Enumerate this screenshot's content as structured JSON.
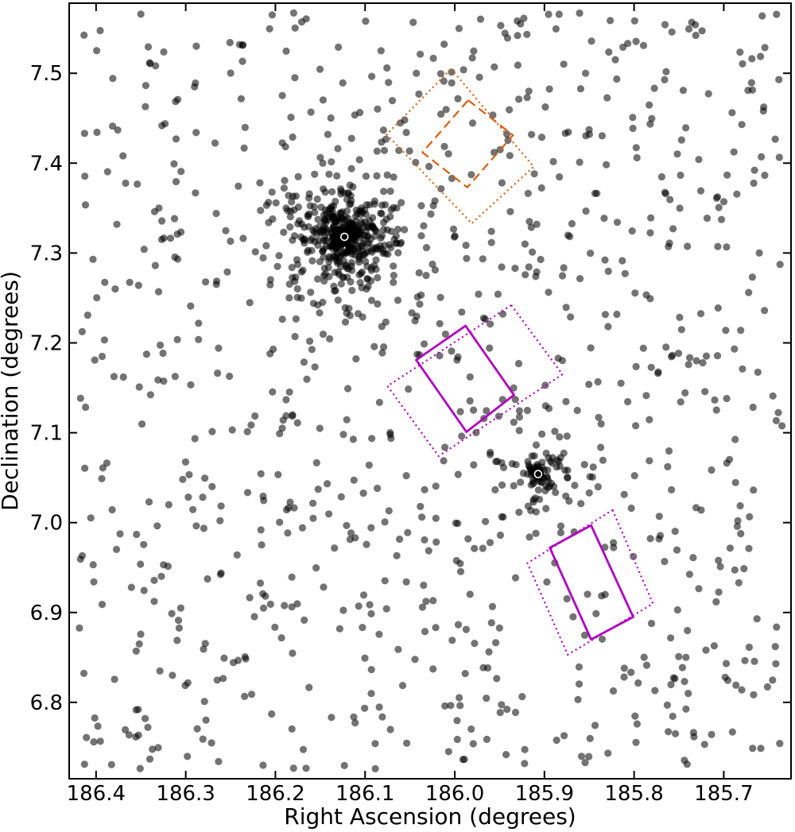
{
  "chart_data": {
    "type": "scatter",
    "title": "",
    "xlabel": "Right Ascension (degrees)",
    "ylabel": "Declination (degrees)",
    "xlim": [
      186.43,
      185.625
    ],
    "ylim": [
      6.715,
      7.578
    ],
    "x_inverted": true,
    "xticks": [
      186.4,
      186.3,
      186.2,
      186.1,
      186.0,
      185.9,
      185.8,
      185.7
    ],
    "xtick_labels": [
      "186.4",
      "186.3",
      "186.2",
      "186.1",
      "186.0",
      "185.9",
      "185.8",
      "185.7"
    ],
    "yticks": [
      6.8,
      6.9,
      7.0,
      7.1,
      7.2,
      7.3,
      7.4,
      7.5
    ],
    "ytick_labels": [
      "6.8",
      "6.9",
      "7.0",
      "7.1",
      "7.2",
      "7.3",
      "7.4",
      "7.5"
    ],
    "grid": false,
    "point_color": "#000000",
    "point_alpha": 0.55,
    "clusters": [
      {
        "ra": 186.123,
        "dec": 7.318,
        "radius": 0.05,
        "count": 520
      },
      {
        "ra": 185.907,
        "dec": 7.054,
        "radius": 0.028,
        "count": 110
      }
    ],
    "background_count": 900,
    "centers": [
      {
        "ra": 186.123,
        "dec": 7.318
      },
      {
        "ra": 185.907,
        "dec": 7.054
      }
    ],
    "fields": [
      {
        "style": "dashed",
        "color": "#d95f0e",
        "corners": [
          [
            185.985,
            7.47
          ],
          [
            185.935,
            7.431
          ],
          [
            185.986,
            7.373
          ],
          [
            186.036,
            7.412
          ]
        ]
      },
      {
        "style": "dotted",
        "color": "#d95f0e",
        "corners": [
          [
            186.004,
            7.505
          ],
          [
            185.912,
            7.396
          ],
          [
            185.981,
            7.333
          ],
          [
            186.076,
            7.432
          ]
        ]
      },
      {
        "style": "solid",
        "color": "#b000c0",
        "corners": [
          [
            185.988,
            7.219
          ],
          [
            185.934,
            7.142
          ],
          [
            185.987,
            7.101
          ],
          [
            186.043,
            7.181
          ]
        ]
      },
      {
        "style": "dotted",
        "color": "#b000c0",
        "corners": [
          [
            185.937,
            7.242
          ],
          [
            185.88,
            7.165
          ],
          [
            186.018,
            7.074
          ],
          [
            186.075,
            7.152
          ]
        ]
      },
      {
        "style": "solid",
        "color": "#b000c0",
        "corners": [
          [
            185.848,
            6.997
          ],
          [
            185.801,
            6.895
          ],
          [
            185.848,
            6.87
          ],
          [
            185.894,
            6.972
          ]
        ]
      },
      {
        "style": "dotted",
        "color": "#b000c0",
        "corners": [
          [
            185.824,
            7.014
          ],
          [
            185.779,
            6.91
          ],
          [
            185.874,
            6.853
          ],
          [
            185.919,
            6.955
          ]
        ]
      }
    ]
  }
}
